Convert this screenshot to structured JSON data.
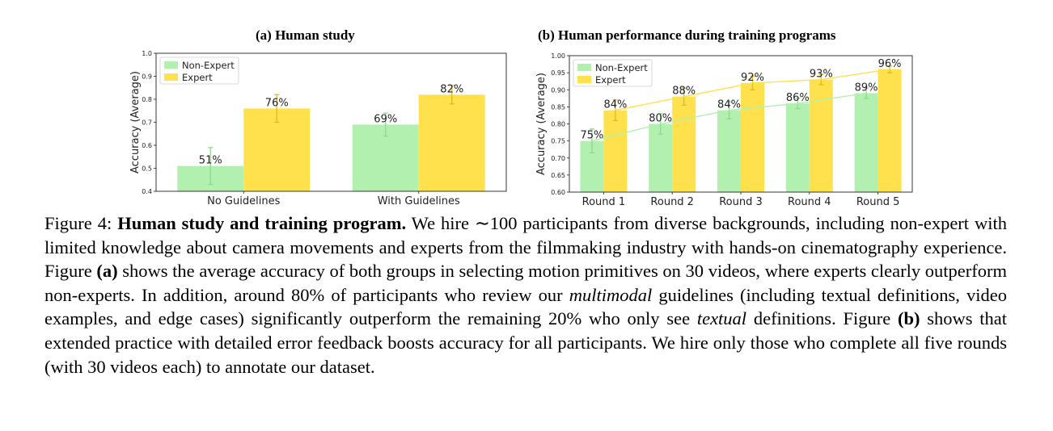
{
  "colors": {
    "non_expert": "#b2f0b0",
    "expert": "#ffe14d",
    "frame": "#222222"
  },
  "chart_data": [
    {
      "id": "a",
      "type": "bar",
      "title": "(a) Human study",
      "ylabel": "Accuracy (Average)",
      "ylim": [
        0.4,
        1.0
      ],
      "yticks": [
        "0.4",
        "0.5",
        "0.6",
        "0.7",
        "0.8",
        "0.9",
        "1.0"
      ],
      "categories": [
        "No Guidelines",
        "With Guidelines"
      ],
      "series": [
        {
          "name": "Non-Expert",
          "values": [
            0.51,
            0.69
          ],
          "errors": [
            0.08,
            0.05
          ],
          "labels": [
            "51%",
            "69%"
          ]
        },
        {
          "name": "Expert",
          "values": [
            0.76,
            0.82
          ],
          "errors": [
            0.06,
            0.04
          ],
          "labels": [
            "76%",
            "82%"
          ]
        }
      ],
      "legend": "top-left",
      "grid": false
    },
    {
      "id": "b",
      "type": "bar",
      "title": "(b) Human performance during training programs",
      "ylabel": "Accuracy (Average)",
      "ylim": [
        0.6,
        1.0
      ],
      "yticks": [
        "0.60",
        "0.65",
        "0.70",
        "0.75",
        "0.80",
        "0.85",
        "0.90",
        "0.95",
        "1.00"
      ],
      "categories": [
        "Round 1",
        "Round 2",
        "Round 3",
        "Round 4",
        "Round 5"
      ],
      "series": [
        {
          "name": "Non-Expert",
          "values": [
            0.75,
            0.8,
            0.84,
            0.86,
            0.89
          ],
          "errors": [
            0.035,
            0.03,
            0.025,
            0.015,
            0.015
          ],
          "labels": [
            "75%",
            "80%",
            "84%",
            "86%",
            "89%"
          ],
          "trend": true
        },
        {
          "name": "Expert",
          "values": [
            0.84,
            0.88,
            0.92,
            0.93,
            0.96
          ],
          "errors": [
            0.03,
            0.025,
            0.02,
            0.015,
            0.01
          ],
          "labels": [
            "84%",
            "88%",
            "92%",
            "93%",
            "96%"
          ],
          "trend": true
        }
      ],
      "legend": "top-left",
      "grid": false
    }
  ],
  "caption": {
    "figure_label": "Figure 4:",
    "bold_title": "Human study and training program.",
    "t1": " We hire ∼100 participants from diverse backgrounds, including non-expert with limited knowledge about camera movements and experts from the filmmaking industry with hands-on cinematography experience. Figure ",
    "b1": "(a)",
    "t2": " shows the average accuracy of both groups in selecting motion primitives on 30 videos, where experts clearly outperform non-experts. In addition, around 80% of participants who review our ",
    "i1": "multimodal",
    "t3": " guidelines (including textual definitions, video examples, and edge cases) significantly outperform the remaining 20% who only see ",
    "i2": "textual",
    "t4": " definitions. Figure ",
    "b2": "(b)",
    "t5": " shows that extended practice with detailed error feedback boosts accuracy for all participants. We hire only those who complete all five rounds (with 30 videos each) to annotate our dataset."
  }
}
